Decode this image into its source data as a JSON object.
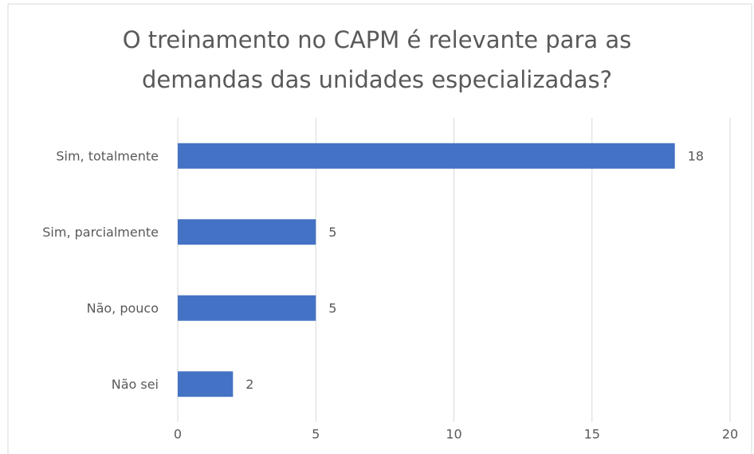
{
  "chart_data": {
    "type": "barh",
    "title": "O treinamento no CAPM é relevante para as demandas das unidades especializadas?",
    "categories": [
      "Sim, totalmente",
      "Sim, parcialmente",
      "Não, pouco",
      "Não sei"
    ],
    "values": [
      18,
      5,
      5,
      2
    ],
    "color": "#4472c4",
    "xlim": [
      0,
      20
    ],
    "xticks": [
      0,
      5,
      10,
      15,
      20
    ],
    "grid": true
  }
}
